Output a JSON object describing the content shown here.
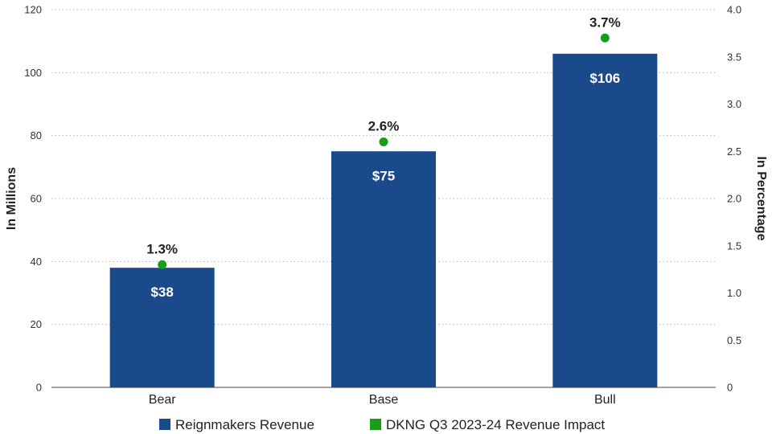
{
  "chart_data": {
    "type": "bar",
    "categories": [
      "Bear",
      "Base",
      "Bull"
    ],
    "series": [
      {
        "name": "Reignmakers Revenue",
        "type": "bar",
        "axis": "left",
        "values": [
          38,
          75,
          106
        ],
        "labels": [
          "$38",
          "$75",
          "$106"
        ],
        "color": "#1a4a8c"
      },
      {
        "name": "DKNG Q3 2023-24 Revenue Impact",
        "type": "scatter",
        "axis": "right",
        "values": [
          1.3,
          2.6,
          3.7
        ],
        "labels": [
          "1.3%",
          "2.6%",
          "3.7%"
        ],
        "color": "#1a9e1a"
      }
    ],
    "ylabel": "In Millions",
    "y2label": "In Percentage",
    "ylim": [
      0,
      120
    ],
    "y2lim": [
      0,
      4.0
    ],
    "yticks": [
      "0",
      "20",
      "40",
      "60",
      "80",
      "100",
      "120"
    ],
    "y2ticks": [
      "0",
      "0.5",
      "1.0",
      "1.5",
      "2.0",
      "2.5",
      "3.0",
      "3.5",
      "4.0"
    ],
    "grid": true,
    "legend_position": "bottom"
  }
}
